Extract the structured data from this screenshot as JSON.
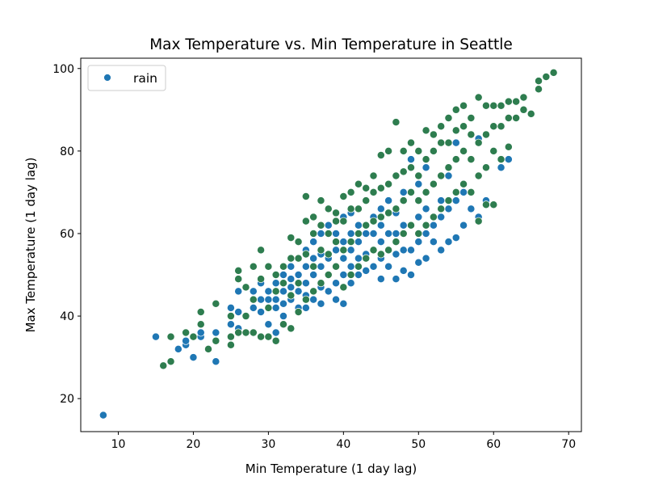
{
  "colors": {
    "rain": "#1f77b4",
    "no_rain": "#2e7d4f",
    "axis": "#000000",
    "legend_border": "#cccccc"
  },
  "chart_data": {
    "type": "scatter",
    "title": "Max Temperature vs. Min Temperature in Seattle",
    "xlabel": "Min Temperature (1 day lag)",
    "ylabel": "Max Temperature (1 day lag)",
    "xlim": [
      5,
      71.7
    ],
    "ylim": [
      12,
      102.5
    ],
    "xticks": [
      10,
      20,
      30,
      40,
      50,
      60,
      70
    ],
    "yticks": [
      20,
      40,
      60,
      80,
      100
    ],
    "grid": false,
    "legend": {
      "position": "top-left",
      "entries": [
        "rain"
      ]
    },
    "series": [
      {
        "name": "rain",
        "x": [
          8,
          15,
          18,
          19,
          19,
          20,
          20,
          21,
          21,
          23,
          23,
          25,
          25,
          26,
          26,
          26,
          27,
          27,
          28,
          28,
          29,
          29,
          29,
          30,
          30,
          30,
          31,
          31,
          31,
          31,
          32,
          32,
          32,
          32,
          32,
          33,
          33,
          33,
          33,
          34,
          34,
          34,
          34,
          35,
          35,
          35,
          35,
          35,
          36,
          36,
          36,
          36,
          37,
          37,
          37,
          37,
          37,
          38,
          38,
          38,
          38,
          39,
          39,
          39,
          39,
          39,
          40,
          40,
          40,
          40,
          40,
          41,
          41,
          41,
          41,
          41,
          42,
          42,
          42,
          42,
          43,
          43,
          43,
          43,
          44,
          44,
          44,
          44,
          45,
          45,
          45,
          45,
          45,
          46,
          46,
          46,
          46,
          47,
          47,
          47,
          47,
          48,
          48,
          48,
          48,
          49,
          49,
          49,
          49,
          50,
          50,
          50,
          50,
          51,
          51,
          51,
          51,
          52,
          52,
          52,
          53,
          53,
          53,
          54,
          54,
          54,
          55,
          55,
          55,
          56,
          56,
          57,
          57,
          58,
          58,
          59,
          61,
          62
        ],
        "y": [
          16,
          35,
          32,
          33,
          34,
          30,
          35,
          35,
          36,
          29,
          36,
          42,
          38,
          46,
          41,
          37,
          47,
          40,
          46,
          42,
          44,
          48,
          41,
          38,
          44,
          46,
          36,
          42,
          48,
          44,
          40,
          46,
          50,
          43,
          48,
          44,
          52,
          47,
          49,
          42,
          46,
          50,
          54,
          42,
          48,
          52,
          56,
          45,
          44,
          50,
          54,
          58,
          43,
          47,
          52,
          55,
          60,
          46,
          50,
          54,
          62,
          44,
          48,
          52,
          56,
          60,
          43,
          50,
          54,
          58,
          64,
          48,
          52,
          56,
          60,
          65,
          50,
          54,
          58,
          62,
          51,
          55,
          60,
          68,
          52,
          56,
          60,
          64,
          49,
          54,
          58,
          62,
          66,
          52,
          56,
          60,
          68,
          49,
          55,
          60,
          65,
          51,
          56,
          62,
          70,
          50,
          56,
          62,
          78,
          53,
          58,
          64,
          72,
          54,
          60,
          66,
          76,
          58,
          62,
          80,
          56,
          64,
          68,
          58,
          66,
          74,
          59,
          68,
          82,
          62,
          70,
          66,
          78,
          64,
          83,
          68,
          76,
          78
        ]
      },
      {
        "name": "",
        "x": [
          16,
          17,
          17,
          19,
          20,
          21,
          21,
          22,
          23,
          23,
          25,
          25,
          25,
          26,
          26,
          26,
          27,
          27,
          27,
          28,
          28,
          28,
          29,
          29,
          29,
          30,
          30,
          30,
          31,
          31,
          31,
          32,
          32,
          32,
          33,
          33,
          33,
          33,
          34,
          34,
          34,
          34,
          35,
          35,
          35,
          35,
          36,
          36,
          36,
          36,
          37,
          37,
          37,
          37,
          38,
          38,
          38,
          38,
          39,
          39,
          39,
          39,
          40,
          40,
          40,
          40,
          41,
          41,
          41,
          41,
          42,
          42,
          42,
          42,
          43,
          43,
          43,
          43,
          44,
          44,
          44,
          44,
          45,
          45,
          45,
          45,
          46,
          46,
          46,
          46,
          47,
          47,
          47,
          47,
          48,
          48,
          48,
          48,
          49,
          49,
          49,
          49,
          50,
          50,
          50,
          50,
          51,
          51,
          51,
          51,
          52,
          52,
          52,
          52,
          53,
          53,
          53,
          53,
          54,
          54,
          54,
          54,
          55,
          55,
          55,
          55,
          56,
          56,
          56,
          56,
          57,
          57,
          57,
          57,
          58,
          58,
          58,
          58,
          59,
          59,
          59,
          59,
          60,
          60,
          60,
          60,
          61,
          61,
          61,
          62,
          62,
          62,
          63,
          63,
          64,
          64,
          65,
          66,
          66,
          67,
          68
        ],
        "y": [
          28,
          29,
          35,
          36,
          35,
          38,
          41,
          32,
          34,
          43,
          33,
          35,
          40,
          36,
          49,
          51,
          36,
          40,
          47,
          36,
          44,
          52,
          35,
          49,
          56,
          35,
          42,
          52,
          34,
          46,
          50,
          38,
          48,
          52,
          37,
          45,
          54,
          59,
          41,
          48,
          54,
          58,
          44,
          55,
          63,
          69,
          46,
          52,
          60,
          64,
          48,
          56,
          62,
          68,
          50,
          55,
          60,
          66,
          52,
          58,
          63,
          65,
          47,
          56,
          63,
          69,
          50,
          58,
          66,
          70,
          52,
          60,
          66,
          72,
          54,
          62,
          68,
          71,
          56,
          63,
          70,
          74,
          55,
          64,
          71,
          79,
          56,
          65,
          72,
          80,
          58,
          66,
          74,
          87,
          60,
          68,
          75,
          80,
          62,
          70,
          76,
          82,
          60,
          68,
          74,
          80,
          62,
          70,
          78,
          85,
          64,
          72,
          80,
          84,
          66,
          74,
          82,
          86,
          68,
          76,
          82,
          88,
          70,
          78,
          85,
          90,
          72,
          80,
          86,
          91,
          70,
          78,
          84,
          88,
          63,
          74,
          82,
          93,
          67,
          76,
          84,
          91,
          67,
          80,
          86,
          91,
          78,
          86,
          91,
          81,
          88,
          92,
          88,
          92,
          90,
          93,
          89,
          95,
          97,
          98,
          99
        ]
      }
    ]
  }
}
